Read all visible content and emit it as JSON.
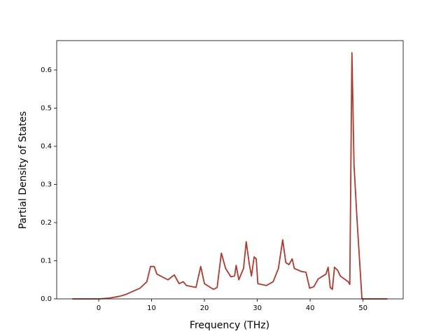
{
  "chart_data": {
    "type": "line",
    "xlabel": "Frequency (THz)",
    "ylabel": "Partial Density of States",
    "x": [
      -5,
      0,
      2,
      4,
      5.2,
      7.8,
      9.1,
      9.8,
      10.5,
      11,
      13.1,
      14.3,
      15.2,
      16,
      16.6,
      18.4,
      19.3,
      20,
      21.7,
      22.4,
      23.2,
      24,
      25,
      25.7,
      26,
      26.5,
      27.4,
      27.9,
      28.5,
      28.9,
      29.4,
      29.8,
      30.1,
      31.7,
      33,
      34,
      34.8,
      35.4,
      36,
      36.6,
      37,
      38.3,
      39.2,
      39.9,
      40.7,
      41.5,
      43,
      43.4,
      43.8,
      44.2,
      44.6,
      45.2,
      45.7,
      47.2,
      47.5,
      47.9,
      48.3,
      48.9,
      49.8,
      54.6
    ],
    "series": [
      {
        "color": "#b5372a",
        "values": [
          0,
          0,
          0.002,
          0.007,
          0.012,
          0.028,
          0.045,
          0.085,
          0.085,
          0.065,
          0.05,
          0.063,
          0.04,
          0.045,
          0.035,
          0.03,
          0.085,
          0.04,
          0.025,
          0.03,
          0.12,
          0.08,
          0.058,
          0.06,
          0.088,
          0.05,
          0.08,
          0.15,
          0.09,
          0.06,
          0.11,
          0.105,
          0.04,
          0.035,
          0.045,
          0.08,
          0.155,
          0.095,
          0.09,
          0.105,
          0.08,
          0.072,
          0.07,
          0.028,
          0.032,
          0.052,
          0.065,
          0.083,
          0.03,
          0.025,
          0.083,
          0.075,
          0.06,
          0.045,
          0.038,
          0.645,
          0.35,
          0.2,
          0,
          0
        ]
      }
    ],
    "xlim": [
      -7.95,
      57.6
    ],
    "ylim": [
      0,
      0.677
    ],
    "xticks": [
      0,
      10,
      20,
      30,
      40,
      50
    ],
    "yticks": [
      {
        "value": 0,
        "label": "0.0"
      },
      0.1,
      0.2,
      0.3,
      0.4,
      0.5,
      0.6
    ]
  }
}
